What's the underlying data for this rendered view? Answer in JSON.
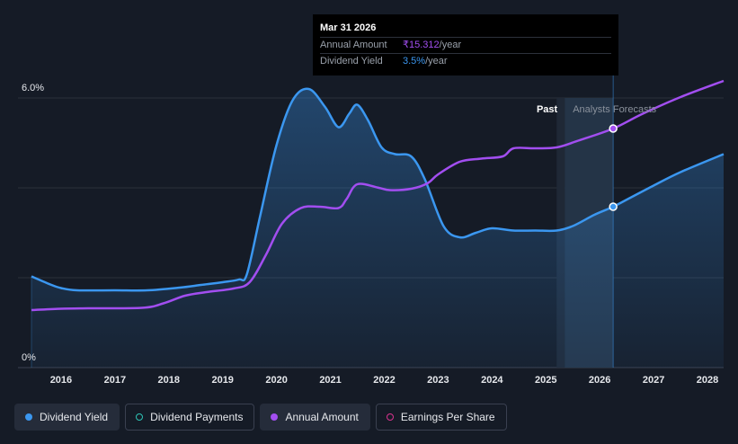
{
  "tooltip": {
    "date": "Mar 31 2026",
    "rows": [
      {
        "label": "Annual Amount",
        "value": "₹15.312",
        "unit": "/year"
      },
      {
        "label": "Dividend Yield",
        "value": "3.5%",
        "unit": "/year"
      }
    ]
  },
  "regions": {
    "past": "Past",
    "forecast": "Analysts Forecasts"
  },
  "legend": [
    {
      "label": "Dividend Yield",
      "color": "#3b97f0",
      "style": "filled",
      "active": true
    },
    {
      "label": "Dividend Payments",
      "color": "#2ec4b6",
      "style": "hollow",
      "active": false
    },
    {
      "label": "Annual Amount",
      "color": "#a24ef0",
      "style": "filled",
      "active": true
    },
    {
      "label": "Earnings Per Share",
      "color": "#d9338f",
      "style": "hollow",
      "active": false
    }
  ],
  "chart_data": {
    "type": "line",
    "y_ticks": [
      "6.0%",
      "0%"
    ],
    "ylim": [
      0,
      6.0
    ],
    "x_ticks": [
      "2016",
      "2017",
      "2018",
      "2019",
      "2020",
      "2021",
      "2022",
      "2023",
      "2024",
      "2025",
      "2026",
      "2027",
      "2028"
    ],
    "xlim": [
      2015.2,
      2028.3
    ],
    "forecast_start": 2025.35,
    "highlight_x": 2026.25,
    "series": [
      {
        "name": "Dividend Yield",
        "color": "#3b97f0",
        "area": true,
        "points": [
          [
            2015.45,
            2.03
          ],
          [
            2015.8,
            1.85
          ],
          [
            2016.0,
            1.77
          ],
          [
            2016.3,
            1.72
          ],
          [
            2017.0,
            1.72
          ],
          [
            2017.6,
            1.72
          ],
          [
            2018.2,
            1.78
          ],
          [
            2018.6,
            1.84
          ],
          [
            2019.0,
            1.9
          ],
          [
            2019.3,
            1.96
          ],
          [
            2019.45,
            2.08
          ],
          [
            2019.7,
            3.4
          ],
          [
            2020.0,
            4.95
          ],
          [
            2020.3,
            5.95
          ],
          [
            2020.6,
            6.2
          ],
          [
            2020.9,
            5.8
          ],
          [
            2021.15,
            5.35
          ],
          [
            2021.35,
            5.65
          ],
          [
            2021.5,
            5.85
          ],
          [
            2021.7,
            5.5
          ],
          [
            2021.95,
            4.9
          ],
          [
            2022.2,
            4.75
          ],
          [
            2022.5,
            4.7
          ],
          [
            2022.75,
            4.2
          ],
          [
            2023.1,
            3.15
          ],
          [
            2023.4,
            2.9
          ],
          [
            2023.7,
            3.0
          ],
          [
            2024.0,
            3.1
          ],
          [
            2024.4,
            3.05
          ],
          [
            2024.8,
            3.05
          ],
          [
            2025.2,
            3.05
          ],
          [
            2025.5,
            3.15
          ],
          [
            2025.9,
            3.4
          ],
          [
            2026.25,
            3.58
          ],
          [
            2026.6,
            3.8
          ],
          [
            2027.0,
            4.05
          ],
          [
            2027.5,
            4.35
          ],
          [
            2028.3,
            4.75
          ]
        ]
      },
      {
        "name": "Annual Amount",
        "color": "#a24ef0",
        "area": false,
        "points": [
          [
            2015.45,
            1.28
          ],
          [
            2016.0,
            1.31
          ],
          [
            2016.5,
            1.32
          ],
          [
            2017.5,
            1.33
          ],
          [
            2017.9,
            1.43
          ],
          [
            2018.3,
            1.6
          ],
          [
            2018.7,
            1.68
          ],
          [
            2019.2,
            1.76
          ],
          [
            2019.5,
            1.9
          ],
          [
            2019.8,
            2.5
          ],
          [
            2020.1,
            3.2
          ],
          [
            2020.45,
            3.55
          ],
          [
            2020.8,
            3.58
          ],
          [
            2021.15,
            3.55
          ],
          [
            2021.3,
            3.75
          ],
          [
            2021.5,
            4.08
          ],
          [
            2021.9,
            4.0
          ],
          [
            2022.1,
            3.95
          ],
          [
            2022.5,
            3.98
          ],
          [
            2022.8,
            4.1
          ],
          [
            2023.0,
            4.3
          ],
          [
            2023.4,
            4.58
          ],
          [
            2023.8,
            4.65
          ],
          [
            2024.2,
            4.7
          ],
          [
            2024.4,
            4.88
          ],
          [
            2024.8,
            4.88
          ],
          [
            2025.2,
            4.9
          ],
          [
            2025.6,
            5.05
          ],
          [
            2026.25,
            5.32
          ],
          [
            2026.8,
            5.65
          ],
          [
            2027.5,
            6.02
          ],
          [
            2028.3,
            6.38
          ]
        ]
      }
    ]
  }
}
